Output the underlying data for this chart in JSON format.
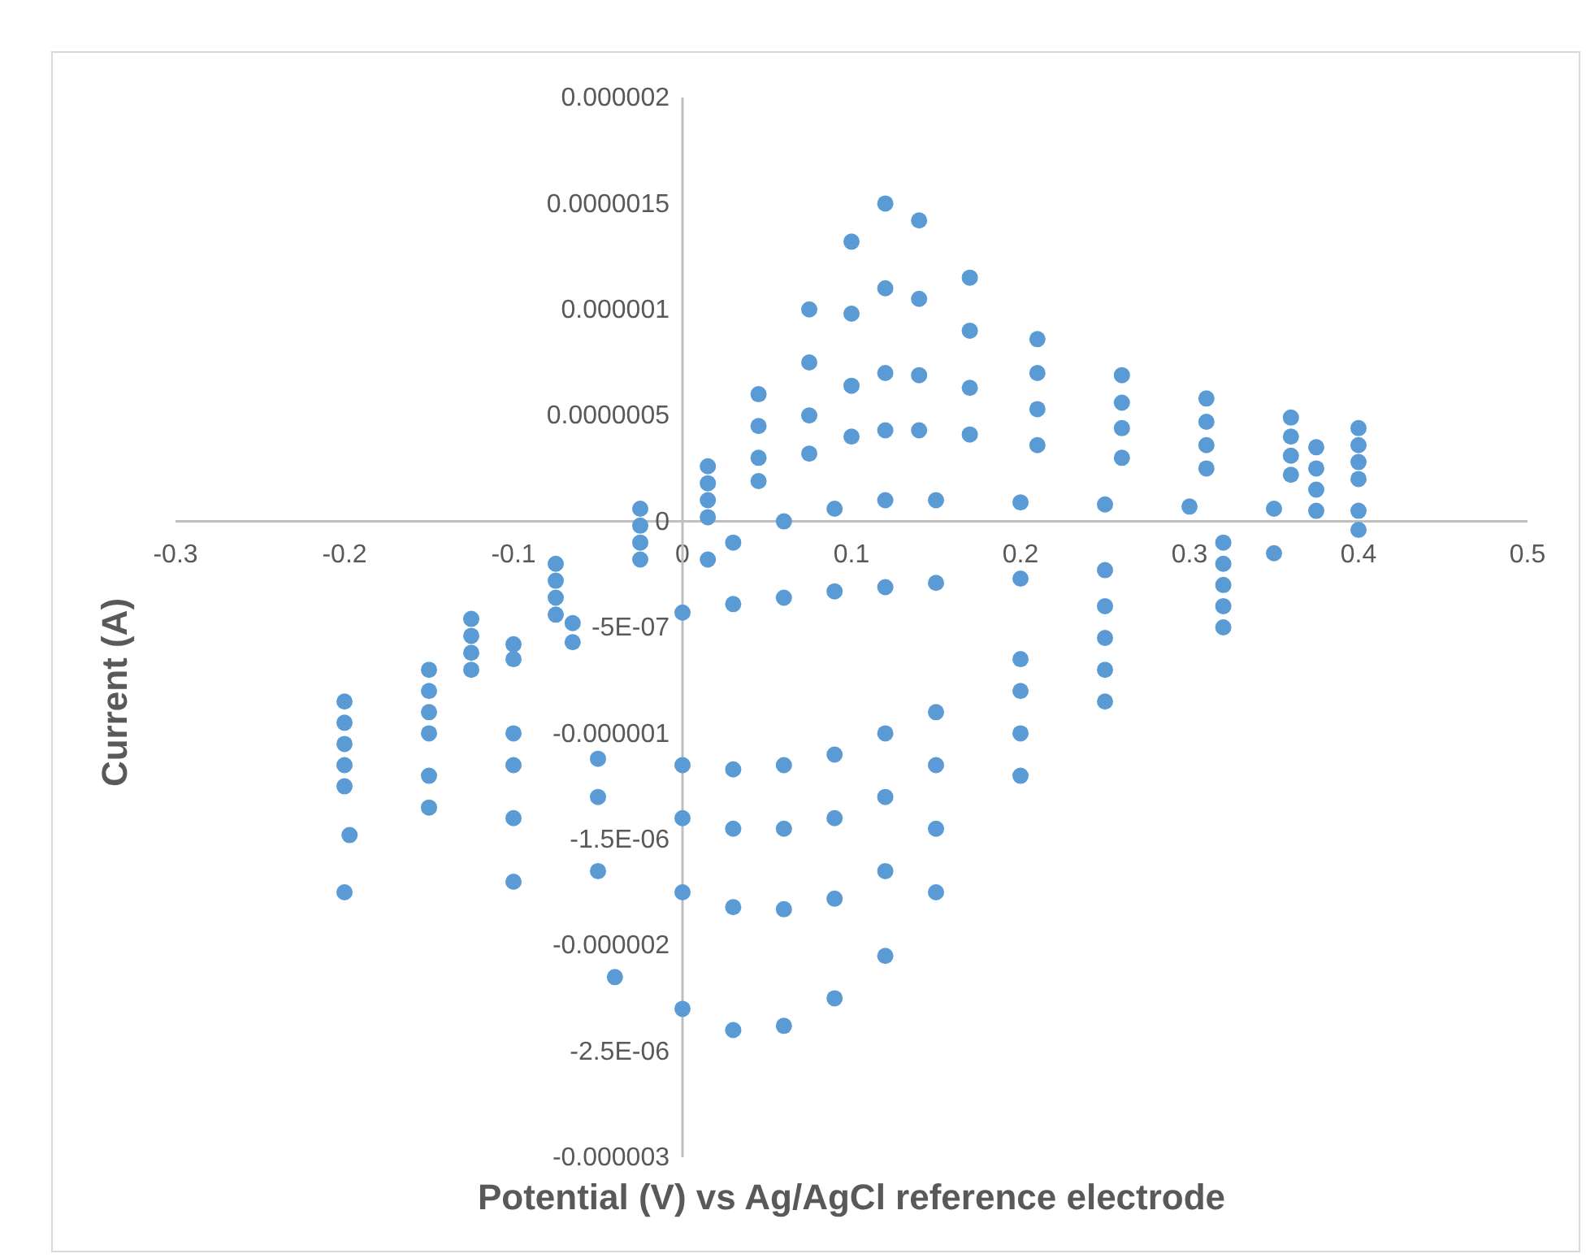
{
  "chart_data": {
    "type": "scatter",
    "xlabel": "Potential (V) vs Ag/AgCl reference electrode",
    "ylabel": "Current (A)",
    "marker": "circle",
    "grid": false,
    "xlim": [
      -0.3,
      0.5
    ],
    "xticks": [
      -0.3,
      -0.2,
      -0.1,
      0,
      0.1,
      0.2,
      0.3,
      0.4,
      0.5
    ],
    "ylim": [
      -3e-06,
      2e-06
    ],
    "yticks": [
      {
        "value": 2e-06,
        "label": "0.000002"
      },
      {
        "value": 1.5e-06,
        "label": "0.0000015"
      },
      {
        "value": 1e-06,
        "label": "0.000001"
      },
      {
        "value": 5e-07,
        "label": "0.0000005"
      },
      {
        "value": 0,
        "label": "0"
      },
      {
        "value": -5e-07,
        "label": "-5E-07"
      },
      {
        "value": -1e-06,
        "label": "-0.000001"
      },
      {
        "value": -1.5e-06,
        "label": "-1.5E-06"
      },
      {
        "value": -2e-06,
        "label": "-0.000002"
      },
      {
        "value": -2.5e-06,
        "label": "-2.5E-06"
      },
      {
        "value": -3e-06,
        "label": "-0.000003"
      }
    ],
    "series": [
      {
        "color": "#5b9bd5",
        "x": [
          0.4,
          0.35,
          0.32,
          0.25,
          0.2,
          0.15,
          0.12,
          0.09,
          0.06,
          0.03,
          0,
          -0.065,
          -0.1,
          -0.15,
          -0.2,
          -0.15,
          -0.1,
          -0.065,
          0.015,
          0.03,
          0.06,
          0.09,
          0.12,
          0.15,
          0.2,
          0.25,
          0.3,
          0.35,
          0.4
        ],
        "values": [
          -4e-08,
          -1.5e-07,
          -2e-07,
          -2.3e-07,
          -2.7e-07,
          -2.9e-07,
          -3.1e-07,
          -3.3e-07,
          -3.6e-07,
          -3.9e-07,
          -4.3e-07,
          -4.8e-07,
          -5.8e-07,
          -7e-07,
          -8.5e-07,
          -8e-07,
          -6.5e-07,
          -5.7e-07,
          -1.8e-07,
          -1e-07,
          0,
          6e-08,
          1e-07,
          1e-07,
          9e-08,
          8e-08,
          7e-08,
          6e-08,
          5e-08
        ]
      },
      {
        "color": "#5b9bd5",
        "x": [
          0.375,
          0.32,
          0.25,
          0.2,
          0.15,
          0.12,
          0.09,
          0.06,
          0.03,
          0,
          -0.05,
          -0.1,
          -0.15,
          -0.2,
          -0.125,
          -0.075,
          -0.025,
          0.015,
          0.045,
          0.075,
          0.1,
          0.12,
          0.14,
          0.17,
          0.21,
          0.26,
          0.31,
          0.36,
          0.4
        ],
        "values": [
          5e-08,
          -1e-07,
          -4e-07,
          -6.5e-07,
          -9e-07,
          -1e-06,
          -1.1e-06,
          -1.15e-06,
          -1.17e-06,
          -1.15e-06,
          -1.12e-06,
          -1e-06,
          -9e-07,
          -9.5e-07,
          -7e-07,
          -4.4e-07,
          -1.8e-07,
          2e-08,
          1.9e-07,
          3.2e-07,
          4e-07,
          4.3e-07,
          4.3e-07,
          4.1e-07,
          3.6e-07,
          3e-07,
          2.5e-07,
          2.2e-07,
          2e-07
        ]
      },
      {
        "color": "#5b9bd5",
        "x": [
          0.375,
          0.32,
          0.25,
          0.2,
          0.15,
          0.12,
          0.09,
          0.06,
          0.03,
          0,
          -0.05,
          -0.1,
          -0.15,
          -0.2,
          -0.125,
          -0.075,
          -0.025,
          0.015,
          0.045,
          0.075,
          0.1,
          0.12,
          0.14,
          0.17,
          0.21,
          0.26,
          0.31,
          0.36,
          0.4
        ],
        "values": [
          1.5e-07,
          -3e-07,
          -5.5e-07,
          -8e-07,
          -1.15e-06,
          -1.3e-06,
          -1.4e-06,
          -1.45e-06,
          -1.45e-06,
          -1.4e-06,
          -1.3e-06,
          -1.15e-06,
          -1e-06,
          -1.05e-06,
          -6.2e-07,
          -3.6e-07,
          -1e-07,
          1e-07,
          3e-07,
          5e-07,
          6.4e-07,
          7e-07,
          6.9e-07,
          6.3e-07,
          5.3e-07,
          4.4e-07,
          3.6e-07,
          3.1e-07,
          2.8e-07
        ]
      },
      {
        "color": "#5b9bd5",
        "x": [
          0.375,
          0.32,
          0.25,
          0.2,
          0.15,
          0.12,
          0.09,
          0.06,
          0.03,
          0,
          -0.05,
          -0.1,
          -0.15,
          -0.2,
          -0.125,
          -0.075,
          -0.025,
          0.015,
          0.045,
          0.075,
          0.1,
          0.12,
          0.14,
          0.17,
          0.21,
          0.26,
          0.31,
          0.36,
          0.4
        ],
        "values": [
          2.5e-07,
          -4e-07,
          -7e-07,
          -1e-06,
          -1.45e-06,
          -1.65e-06,
          -1.78e-06,
          -1.83e-06,
          -1.82e-06,
          -1.75e-06,
          -1.65e-06,
          -1.4e-06,
          -1.2e-06,
          -1.15e-06,
          -5.4e-07,
          -2.8e-07,
          -2e-08,
          1.8e-07,
          4.5e-07,
          7.5e-07,
          9.8e-07,
          1.1e-06,
          1.05e-06,
          9e-07,
          7e-07,
          5.6e-07,
          4.7e-07,
          4e-07,
          3.6e-07
        ]
      },
      {
        "color": "#5b9bd5",
        "x": [
          0.375,
          0.32,
          0.25,
          0.2,
          0.15,
          0.12,
          0.09,
          0.06,
          0.03,
          0,
          -0.04,
          -0.1,
          -0.15,
          -0.2,
          -0.125,
          -0.075,
          -0.025,
          0.015,
          0.045,
          0.075,
          0.1,
          0.12,
          0.14,
          0.17,
          0.21,
          0.26,
          0.31,
          0.36,
          0.4
        ],
        "values": [
          3.5e-07,
          -5e-07,
          -8.5e-07,
          -1.2e-06,
          -1.75e-06,
          -2.05e-06,
          -2.25e-06,
          -2.38e-06,
          -2.4e-06,
          -2.3e-06,
          -2.15e-06,
          -1.7e-06,
          -1.35e-06,
          -1.25e-06,
          -4.6e-07,
          -2e-07,
          6e-08,
          2.6e-07,
          6e-07,
          1e-06,
          1.32e-06,
          1.5e-06,
          1.42e-06,
          1.15e-06,
          8.6e-07,
          6.9e-07,
          5.8e-07,
          4.9e-07,
          4.4e-07
        ]
      },
      {
        "color": "#5b9bd5",
        "x": [
          -0.197,
          -0.2
        ],
        "values": [
          -1.48e-06,
          -1.75e-06
        ]
      }
    ]
  }
}
